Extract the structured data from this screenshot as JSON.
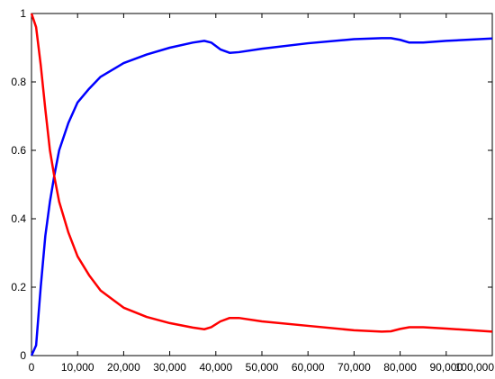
{
  "chart_data": {
    "type": "line",
    "x": [
      0,
      1000,
      2000,
      3000,
      4000,
      5000,
      6000,
      8000,
      10000,
      12500,
      15000,
      20000,
      25000,
      30000,
      35000,
      37500,
      39000,
      41000,
      43000,
      45000,
      50000,
      60000,
      70000,
      76000,
      78000,
      80000,
      82000,
      85000,
      90000,
      100000
    ],
    "series": [
      {
        "color": "#0000ff",
        "values": [
          0,
          0.03,
          0.2,
          0.35,
          0.45,
          0.53,
          0.6,
          0.68,
          0.74,
          0.78,
          0.815,
          0.855,
          0.88,
          0.9,
          0.915,
          0.92,
          0.915,
          0.895,
          0.885,
          0.887,
          0.897,
          0.913,
          0.925,
          0.928,
          0.928,
          0.923,
          0.915,
          0.915,
          0.92,
          0.927
        ]
      },
      {
        "color": "#ff0000",
        "values": [
          1,
          0.96,
          0.85,
          0.72,
          0.6,
          0.52,
          0.45,
          0.36,
          0.29,
          0.235,
          0.19,
          0.14,
          0.113,
          0.095,
          0.082,
          0.077,
          0.083,
          0.1,
          0.11,
          0.11,
          0.1,
          0.087,
          0.074,
          0.07,
          0.071,
          0.078,
          0.083,
          0.083,
          0.079,
          0.07
        ]
      }
    ],
    "xlim": [
      0,
      100000
    ],
    "xticks": [
      0,
      {
        "value": 10000,
        "label": "10,000"
      },
      {
        "value": 20000,
        "label": "20,000"
      },
      {
        "value": 30000,
        "label": "30,000"
      },
      {
        "value": 40000,
        "label": "40,000"
      },
      {
        "value": 50000,
        "label": "50,000"
      },
      {
        "value": 60000,
        "label": "60,000"
      },
      {
        "value": 70000,
        "label": "70,000"
      },
      {
        "value": 80000,
        "label": "80,000"
      },
      {
        "value": 90000,
        "label": "90,000"
      },
      {
        "value": 100000,
        "label": "100,000"
      }
    ],
    "ylim": [
      0,
      1
    ],
    "yticks": [
      0,
      0.2,
      0.4,
      0.6,
      0.8,
      1
    ],
    "grid": false
  }
}
